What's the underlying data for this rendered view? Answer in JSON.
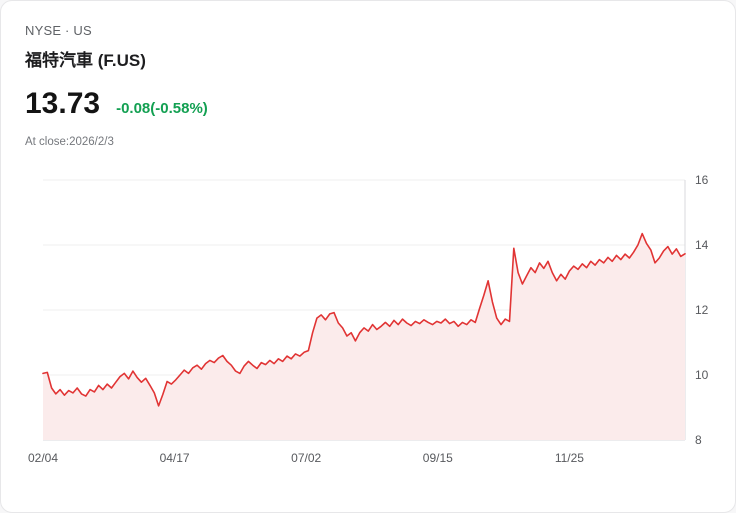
{
  "header": {
    "exchange": "NYSE · US",
    "title": "福特汽車 (F.US)",
    "price": "13.73",
    "change": "-0.08(-0.58%)",
    "as_of": "At close:2026/2/3"
  },
  "colors": {
    "line": "#e13434",
    "fill": "#fbebeb",
    "change_text": "#13a052",
    "grid": "#efefef",
    "axis": "#d9d9dc",
    "tick_text": "#57595d"
  },
  "chart_data": {
    "type": "area",
    "title": "F.US intraday-close price, one year",
    "ylim": [
      8,
      16
    ],
    "y_ticks": [
      8,
      10,
      12,
      14,
      16
    ],
    "x_ticks": [
      {
        "label": "02/04",
        "pos": 0.0
      },
      {
        "label": "04/17",
        "pos": 0.205
      },
      {
        "label": "07/02",
        "pos": 0.41
      },
      {
        "label": "09/15",
        "pos": 0.615
      },
      {
        "label": "11/25",
        "pos": 0.82
      }
    ],
    "grid": true,
    "legend": false,
    "values": [
      10.05,
      10.08,
      9.6,
      9.42,
      9.55,
      9.38,
      9.52,
      9.45,
      9.6,
      9.42,
      9.35,
      9.55,
      9.48,
      9.68,
      9.55,
      9.72,
      9.6,
      9.78,
      9.95,
      10.05,
      9.88,
      10.12,
      9.92,
      9.78,
      9.9,
      9.68,
      9.45,
      9.05,
      9.4,
      9.8,
      9.72,
      9.85,
      10.0,
      10.15,
      10.05,
      10.22,
      10.3,
      10.18,
      10.35,
      10.45,
      10.38,
      10.52,
      10.6,
      10.42,
      10.3,
      10.12,
      10.05,
      10.28,
      10.42,
      10.3,
      10.2,
      10.38,
      10.32,
      10.45,
      10.35,
      10.5,
      10.42,
      10.58,
      10.5,
      10.65,
      10.58,
      10.7,
      10.75,
      11.3,
      11.75,
      11.85,
      11.7,
      11.88,
      11.92,
      11.6,
      11.45,
      11.2,
      11.3,
      11.05,
      11.3,
      11.45,
      11.35,
      11.55,
      11.4,
      11.5,
      11.62,
      11.5,
      11.68,
      11.55,
      11.72,
      11.6,
      11.52,
      11.65,
      11.58,
      11.7,
      11.62,
      11.55,
      11.65,
      11.6,
      11.72,
      11.58,
      11.65,
      11.5,
      11.62,
      11.55,
      11.7,
      11.62,
      12.05,
      12.45,
      12.9,
      12.25,
      11.75,
      11.55,
      11.72,
      11.65,
      13.9,
      13.15,
      12.8,
      13.05,
      13.3,
      13.15,
      13.45,
      13.28,
      13.5,
      13.15,
      12.9,
      13.1,
      12.95,
      13.2,
      13.35,
      13.25,
      13.42,
      13.3,
      13.5,
      13.38,
      13.55,
      13.45,
      13.62,
      13.5,
      13.68,
      13.55,
      13.72,
      13.6,
      13.78,
      14.0,
      14.35,
      14.05,
      13.85,
      13.45,
      13.6,
      13.82,
      13.95,
      13.72,
      13.88,
      13.65,
      13.73
    ]
  }
}
